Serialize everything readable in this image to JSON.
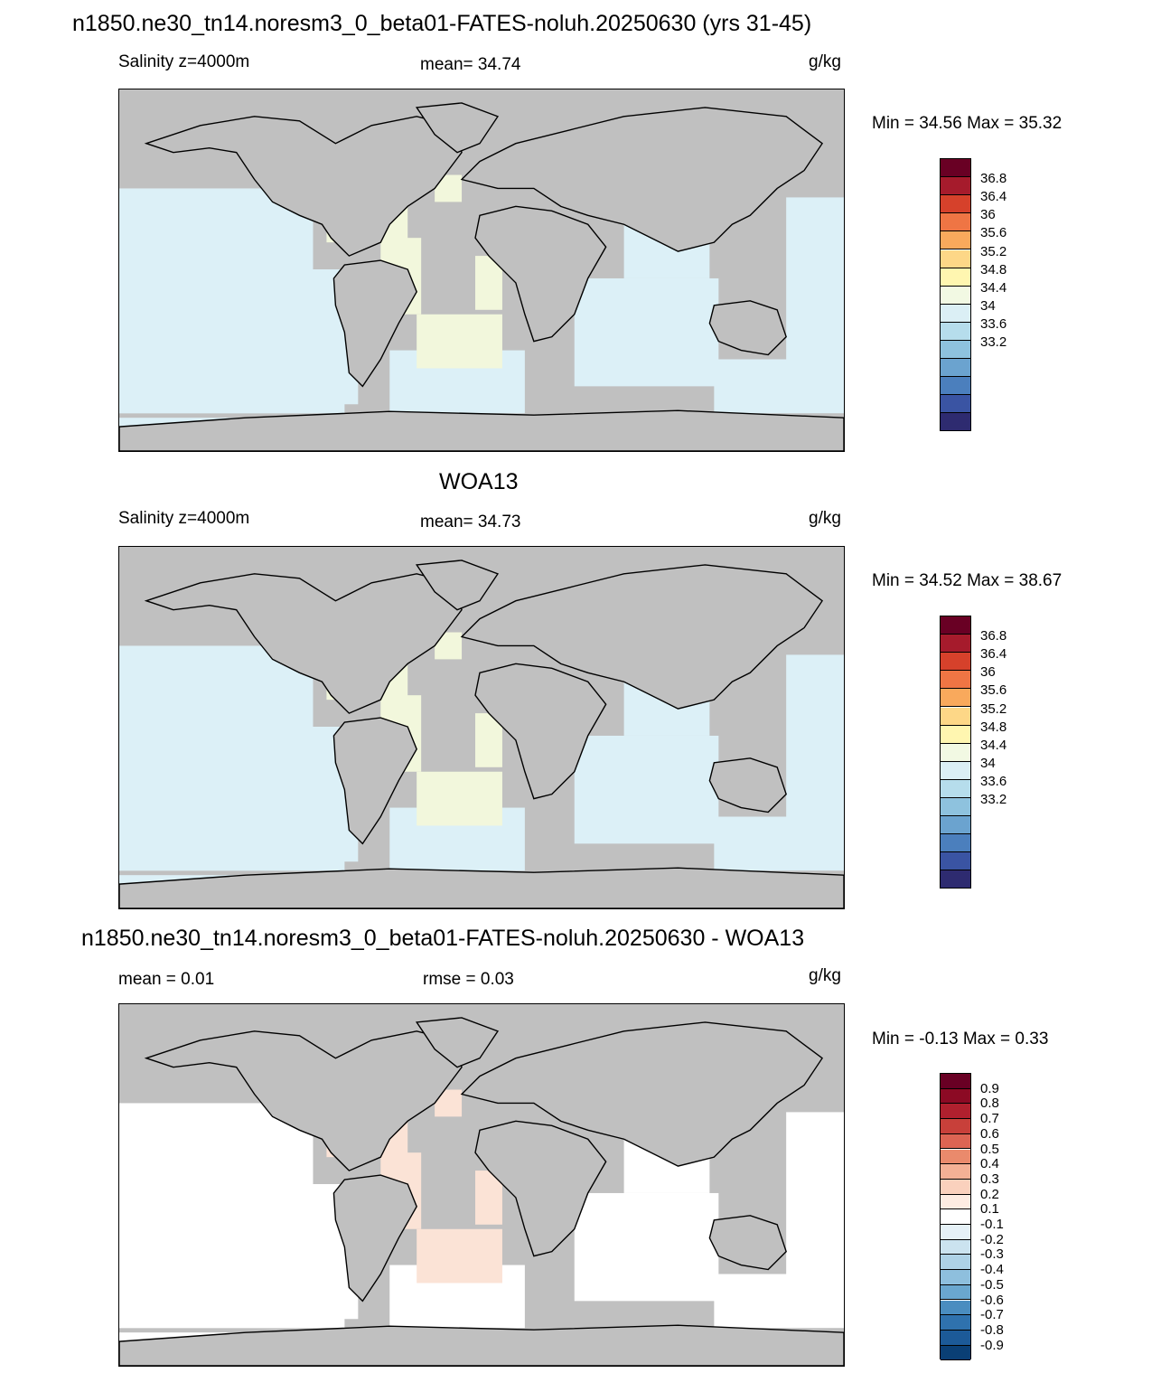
{
  "title": "n1850.ne30_tn14.noresm3_0_beta01-FATES-noluh.20250630 (yrs 31-45)",
  "panels": [
    {
      "id": "model",
      "header": "",
      "left_label": "Salinity z=4000m",
      "center_label": "mean=  34.74",
      "unit": "g/kg",
      "minmax": "Min =  34.56 Max =  35.32",
      "colorbar": {
        "ticks": [
          "36.8",
          "36.4",
          "36",
          "35.6",
          "35.2",
          "34.8",
          "34.4",
          "34",
          "33.6",
          "33.2"
        ],
        "colors": [
          "#690024",
          "#a61b2c",
          "#d6412b",
          "#ef7544",
          "#f9a95c",
          "#fdd787",
          "#fff6b0",
          "#f2f9e3",
          "#dbeff5",
          "#b6ddec",
          "#8ec2de",
          "#6ba3cf",
          "#4b7fbd",
          "#3a54a3",
          "#2e2b70"
        ]
      },
      "ocean_color": "#dcf0f7",
      "anomaly_color": "#f2f7dc"
    },
    {
      "id": "obs",
      "header": "WOA13",
      "left_label": "Salinity z=4000m",
      "center_label": "mean=  34.73",
      "unit": "g/kg",
      "minmax": "Min =  34.52 Max =  38.67",
      "colorbar": {
        "ticks": [
          "36.8",
          "36.4",
          "36",
          "35.6",
          "35.2",
          "34.8",
          "34.4",
          "34",
          "33.6",
          "33.2"
        ],
        "colors": [
          "#690024",
          "#a61b2c",
          "#d6412b",
          "#ef7544",
          "#f9a95c",
          "#fdd787",
          "#fff6b0",
          "#f2f9e3",
          "#dbeff5",
          "#b6ddec",
          "#8ec2de",
          "#6ba3cf",
          "#4b7fbd",
          "#3a54a3",
          "#2e2b70"
        ]
      },
      "ocean_color": "#dcf0f7",
      "anomaly_color": "#f2f7dc"
    },
    {
      "id": "diff",
      "header": "n1850.ne30_tn14.noresm3_0_beta01-FATES-noluh.20250630 - WOA13",
      "left_label": "mean =   0.01",
      "center_label": "rmse =   0.03",
      "unit": "g/kg",
      "minmax": "Min =  -0.13 Max =   0.33",
      "colorbar": {
        "ticks": [
          "0.9",
          "0.8",
          "0.7",
          "0.6",
          "0.5",
          "0.4",
          "0.3",
          "0.2",
          "0.1",
          "-0.1",
          "-0.2",
          "-0.3",
          "-0.4",
          "-0.5",
          "-0.6",
          "-0.7",
          "-0.8",
          "-0.9"
        ],
        "colors": [
          "#690024",
          "#8c0a24",
          "#b0202e",
          "#c8403a",
          "#dc6453",
          "#ea8a6c",
          "#f4b095",
          "#fad1bd",
          "#fdece2",
          "#ffffff",
          "#e6f1f7",
          "#cbe3ef",
          "#aed2e6",
          "#8ebfdd",
          "#6aa7cf",
          "#4a8dc0",
          "#2f72ae",
          "#1c5a98",
          "#0a3f75"
        ]
      },
      "ocean_color": "#ffffff",
      "anomaly_color": "#fbe3d6"
    }
  ]
}
